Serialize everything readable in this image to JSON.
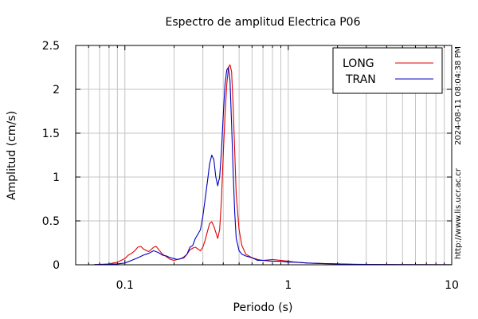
{
  "chart_data": {
    "type": "line",
    "title": "Espectro de amplitud Electrica P06",
    "xlabel": "Periodo (s)",
    "ylabel": "Amplitud (cm/s)",
    "x_scale": "log",
    "xlim": [
      0.05,
      10
    ],
    "ylim": [
      0,
      2.5
    ],
    "grid": true,
    "legend_position": "top-right",
    "x_tick_labels": [
      {
        "value": 0.1,
        "label": "0.1"
      },
      {
        "value": 1,
        "label": "1"
      },
      {
        "value": 10,
        "label": "10"
      }
    ],
    "y_tick_labels": [
      {
        "value": 0,
        "label": "0"
      },
      {
        "value": 0.5,
        "label": "0.5"
      },
      {
        "value": 1,
        "label": "1"
      },
      {
        "value": 1.5,
        "label": "1.5"
      },
      {
        "value": 2,
        "label": "2"
      },
      {
        "value": 2.5,
        "label": "2.5"
      }
    ],
    "series": [
      {
        "name": "LONG",
        "color": "#e00000",
        "points": [
          [
            0.065,
            0.002
          ],
          [
            0.08,
            0.01
          ],
          [
            0.09,
            0.03
          ],
          [
            0.1,
            0.07
          ],
          [
            0.105,
            0.11
          ],
          [
            0.11,
            0.13
          ],
          [
            0.115,
            0.16
          ],
          [
            0.12,
            0.2
          ],
          [
            0.125,
            0.21
          ],
          [
            0.13,
            0.18
          ],
          [
            0.14,
            0.15
          ],
          [
            0.15,
            0.2
          ],
          [
            0.155,
            0.21
          ],
          [
            0.16,
            0.18
          ],
          [
            0.17,
            0.12
          ],
          [
            0.18,
            0.09
          ],
          [
            0.19,
            0.06
          ],
          [
            0.2,
            0.05
          ],
          [
            0.21,
            0.06
          ],
          [
            0.22,
            0.07
          ],
          [
            0.23,
            0.09
          ],
          [
            0.24,
            0.12
          ],
          [
            0.25,
            0.17
          ],
          [
            0.26,
            0.19
          ],
          [
            0.27,
            0.2
          ],
          [
            0.28,
            0.18
          ],
          [
            0.29,
            0.16
          ],
          [
            0.3,
            0.2
          ],
          [
            0.31,
            0.28
          ],
          [
            0.32,
            0.38
          ],
          [
            0.33,
            0.47
          ],
          [
            0.34,
            0.49
          ],
          [
            0.35,
            0.44
          ],
          [
            0.36,
            0.37
          ],
          [
            0.37,
            0.3
          ],
          [
            0.38,
            0.4
          ],
          [
            0.39,
            0.75
          ],
          [
            0.4,
            1.25
          ],
          [
            0.41,
            1.7
          ],
          [
            0.42,
            2.05
          ],
          [
            0.43,
            2.25
          ],
          [
            0.44,
            2.28
          ],
          [
            0.45,
            2.2
          ],
          [
            0.46,
            1.8
          ],
          [
            0.47,
            1.3
          ],
          [
            0.48,
            0.8
          ],
          [
            0.5,
            0.4
          ],
          [
            0.52,
            0.22
          ],
          [
            0.55,
            0.12
          ],
          [
            0.6,
            0.08
          ],
          [
            0.65,
            0.06
          ],
          [
            0.7,
            0.05
          ],
          [
            0.8,
            0.06
          ],
          [
            0.9,
            0.05
          ],
          [
            1.0,
            0.04
          ],
          [
            1.1,
            0.03
          ],
          [
            1.3,
            0.02
          ],
          [
            1.6,
            0.015
          ],
          [
            2.0,
            0.01
          ],
          [
            2.5,
            0.005
          ],
          [
            3.0,
            0.004
          ],
          [
            5.0,
            0.002
          ],
          [
            10,
            0.001
          ]
        ]
      },
      {
        "name": "TRAN",
        "color": "#0000c0",
        "points": [
          [
            0.065,
            0.002
          ],
          [
            0.08,
            0.005
          ],
          [
            0.09,
            0.01
          ],
          [
            0.1,
            0.02
          ],
          [
            0.11,
            0.05
          ],
          [
            0.12,
            0.08
          ],
          [
            0.13,
            0.11
          ],
          [
            0.14,
            0.13
          ],
          [
            0.15,
            0.16
          ],
          [
            0.16,
            0.14
          ],
          [
            0.17,
            0.11
          ],
          [
            0.18,
            0.1
          ],
          [
            0.19,
            0.08
          ],
          [
            0.2,
            0.07
          ],
          [
            0.21,
            0.06
          ],
          [
            0.22,
            0.07
          ],
          [
            0.23,
            0.08
          ],
          [
            0.24,
            0.12
          ],
          [
            0.25,
            0.2
          ],
          [
            0.26,
            0.22
          ],
          [
            0.27,
            0.3
          ],
          [
            0.28,
            0.35
          ],
          [
            0.29,
            0.4
          ],
          [
            0.3,
            0.55
          ],
          [
            0.31,
            0.75
          ],
          [
            0.32,
            0.95
          ],
          [
            0.33,
            1.15
          ],
          [
            0.34,
            1.25
          ],
          [
            0.35,
            1.2
          ],
          [
            0.36,
            1.0
          ],
          [
            0.37,
            0.9
          ],
          [
            0.38,
            1.0
          ],
          [
            0.39,
            1.3
          ],
          [
            0.4,
            1.7
          ],
          [
            0.41,
            2.05
          ],
          [
            0.42,
            2.22
          ],
          [
            0.43,
            2.25
          ],
          [
            0.44,
            2.1
          ],
          [
            0.45,
            1.6
          ],
          [
            0.46,
            1.05
          ],
          [
            0.47,
            0.6
          ],
          [
            0.48,
            0.3
          ],
          [
            0.5,
            0.16
          ],
          [
            0.52,
            0.12
          ],
          [
            0.55,
            0.1
          ],
          [
            0.6,
            0.08
          ],
          [
            0.65,
            0.05
          ],
          [
            0.7,
            0.05
          ],
          [
            0.8,
            0.04
          ],
          [
            0.9,
            0.04
          ],
          [
            1.0,
            0.03
          ],
          [
            1.1,
            0.03
          ],
          [
            1.3,
            0.02
          ],
          [
            1.6,
            0.015
          ],
          [
            2.0,
            0.01
          ],
          [
            2.5,
            0.005
          ],
          [
            3.0,
            0.004
          ],
          [
            5.0,
            0.002
          ],
          [
            10,
            0.001
          ]
        ]
      }
    ]
  },
  "side_labels": {
    "timestamp": "2024-08-11 08:04:38 PM",
    "url": "http://www.lis.ucr.ac.cr"
  }
}
